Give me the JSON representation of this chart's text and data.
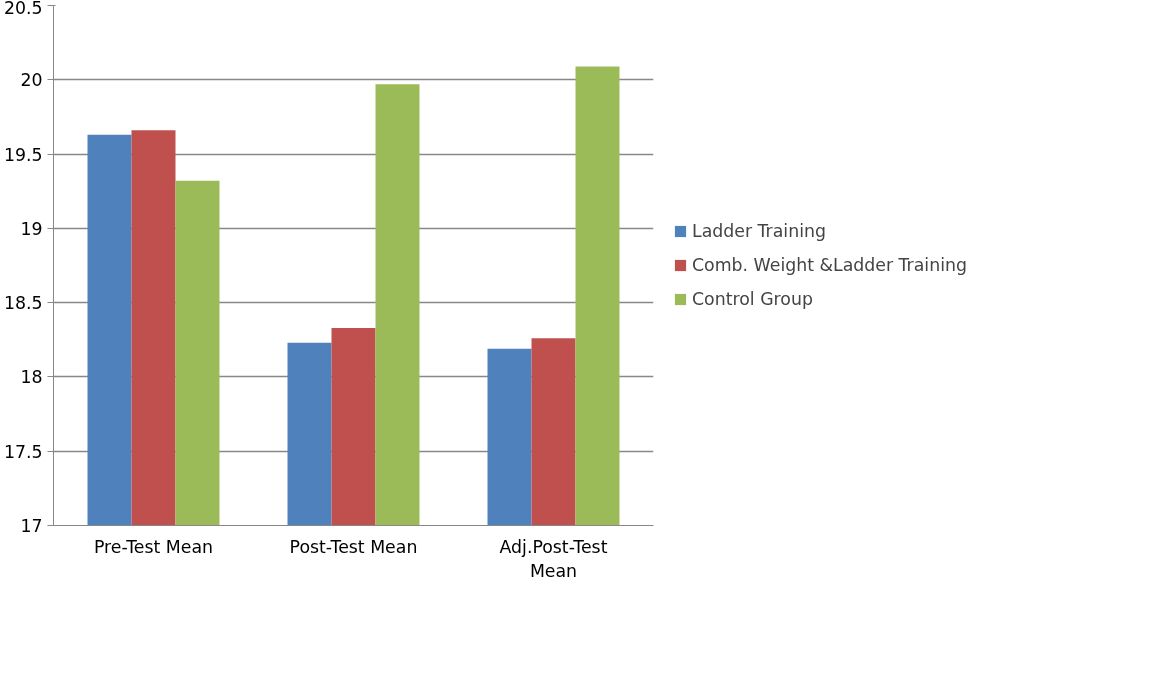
{
  "chart_data": {
    "type": "bar",
    "categories": [
      "Pre-Test Mean",
      "Post-Test Mean",
      "Adj.Post-Test Mean"
    ],
    "series": [
      {
        "name": "Ladder Training",
        "color": "#4f81bd",
        "values": [
          19.63,
          18.23,
          18.19
        ]
      },
      {
        "name": "Comb. Weight &Ladder Training",
        "color": "#c0504d",
        "values": [
          19.66,
          18.33,
          18.26
        ]
      },
      {
        "name": "Control Group",
        "color": "#9bbb59",
        "values": [
          19.32,
          19.97,
          20.09
        ]
      }
    ],
    "ylim": [
      17,
      20.5
    ],
    "yticks": [
      17,
      17.5,
      18,
      18.5,
      19,
      19.5,
      20,
      20.5
    ],
    "grid": "y",
    "legend": "right"
  }
}
